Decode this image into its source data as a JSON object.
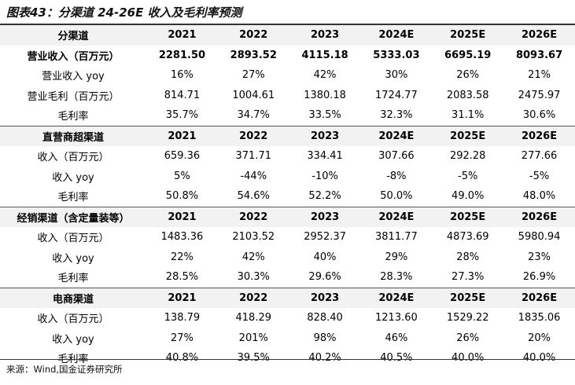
{
  "title": "图表43：分渠道 24-26E 收入及毛利率预测",
  "years": [
    "2021",
    "2022",
    "2023",
    "2024E",
    "2025E",
    "2026E"
  ],
  "sections": [
    {
      "header": "分渠道",
      "rows": [
        {
          "label": "营业收入（百万元）",
          "bold": true,
          "values": [
            "2281.50",
            "2893.52",
            "4115.18",
            "5333.03",
            "6695.19",
            "8093.67"
          ]
        },
        {
          "label": "营业收入 yoy",
          "values": [
            "16%",
            "27%",
            "42%",
            "30%",
            "26%",
            "21%"
          ]
        },
        {
          "label": "营业毛利（百万元）",
          "values": [
            "814.71",
            "1004.61",
            "1380.18",
            "1724.77",
            "2083.58",
            "2475.97"
          ]
        },
        {
          "label": "毛利率",
          "values": [
            "35.7%",
            "34.7%",
            "33.5%",
            "32.3%",
            "31.1%",
            "30.6%"
          ]
        }
      ]
    },
    {
      "header": "直营商超渠道",
      "rows": [
        {
          "label": "收入（百万元）",
          "values": [
            "659.36",
            "371.71",
            "334.41",
            "307.66",
            "292.28",
            "277.66"
          ]
        },
        {
          "label": "收入 yoy",
          "values": [
            "5%",
            "-44%",
            "-10%",
            "-8%",
            "-5%",
            "-5%"
          ]
        },
        {
          "label": "毛利率",
          "values": [
            "50.8%",
            "54.6%",
            "52.2%",
            "50.0%",
            "49.0%",
            "48.0%"
          ]
        }
      ]
    },
    {
      "header": "经销渠道（含定量装等）",
      "rows": [
        {
          "label": "收入（百万元）",
          "values": [
            "1483.36",
            "2103.52",
            "2952.37",
            "3811.77",
            "4873.69",
            "5980.94"
          ]
        },
        {
          "label": "收入 yoy",
          "values": [
            "22%",
            "42%",
            "40%",
            "29%",
            "28%",
            "23%"
          ]
        },
        {
          "label": "毛利率",
          "values": [
            "28.5%",
            "30.3%",
            "29.6%",
            "28.3%",
            "27.3%",
            "26.9%"
          ]
        }
      ]
    },
    {
      "header": "电商渠道",
      "rows": [
        {
          "label": "收入（百万元）",
          "values": [
            "138.79",
            "418.29",
            "828.40",
            "1213.60",
            "1529.22",
            "1835.06"
          ]
        },
        {
          "label": "收入 yoy",
          "values": [
            "27%",
            "201%",
            "98%",
            "46%",
            "26%",
            "20%"
          ]
        },
        {
          "label": "毛利率",
          "values": [
            "40.8%",
            "39.5%",
            "40.2%",
            "40.5%",
            "40.0%",
            "40.0%"
          ]
        }
      ]
    }
  ],
  "source": "来源：Wind,国金证券研究所"
}
